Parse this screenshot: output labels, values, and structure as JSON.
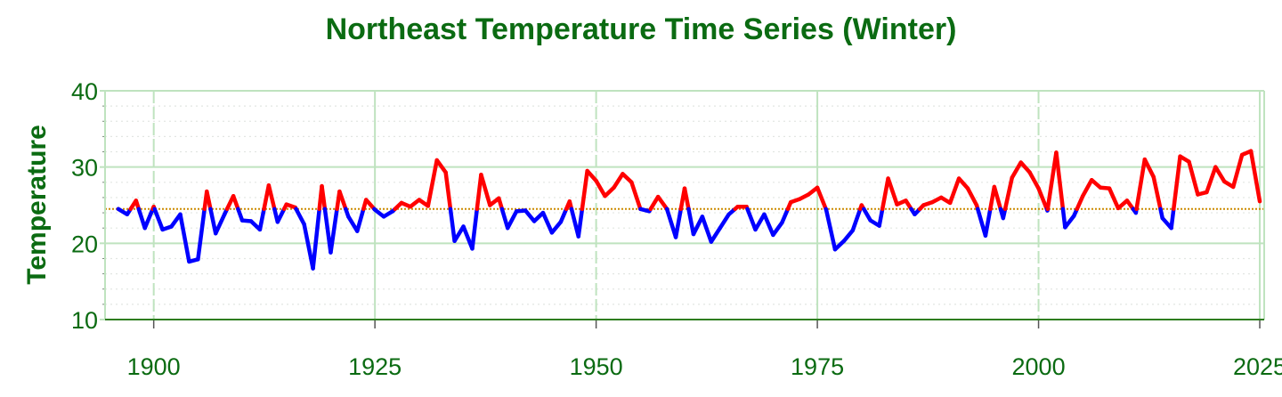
{
  "chart_data": {
    "type": "line",
    "title": "Northeast Temperature Time Series (Winter)",
    "xlabel": "",
    "ylabel": "Temperature",
    "xlim": [
      1894.5,
      2025.5
    ],
    "ylim": [
      10,
      40
    ],
    "x_ticks": [
      "1900",
      "1925",
      "1950",
      "1975",
      "2000",
      "2025"
    ],
    "y_ticks": [
      "10",
      "20",
      "30",
      "40"
    ],
    "grid": true,
    "baseline": 24.5,
    "colors": {
      "above_baseline": "#ff0000",
      "below_baseline": "#0000ff",
      "baseline_line": "#cc8a00",
      "grid": "#bfe3bf",
      "text": "#0b6b12"
    },
    "x": [
      1896,
      1897,
      1898,
      1899,
      1900,
      1901,
      1902,
      1903,
      1904,
      1905,
      1906,
      1907,
      1908,
      1909,
      1910,
      1911,
      1912,
      1913,
      1914,
      1915,
      1916,
      1917,
      1918,
      1919,
      1920,
      1921,
      1922,
      1923,
      1924,
      1925,
      1926,
      1927,
      1928,
      1929,
      1930,
      1931,
      1932,
      1933,
      1934,
      1935,
      1936,
      1937,
      1938,
      1939,
      1940,
      1941,
      1942,
      1943,
      1944,
      1945,
      1946,
      1947,
      1948,
      1949,
      1950,
      1951,
      1952,
      1953,
      1954,
      1955,
      1956,
      1957,
      1958,
      1959,
      1960,
      1961,
      1962,
      1963,
      1964,
      1965,
      1966,
      1967,
      1968,
      1969,
      1970,
      1971,
      1972,
      1973,
      1974,
      1975,
      1976,
      1977,
      1978,
      1979,
      1980,
      1981,
      1982,
      1983,
      1984,
      1985,
      1986,
      1987,
      1988,
      1989,
      1990,
      1991,
      1992,
      1993,
      1994,
      1995,
      1996,
      1997,
      1998,
      1999,
      2000,
      2001,
      2002,
      2003,
      2004,
      2005,
      2006,
      2007,
      2008,
      2009,
      2010,
      2011,
      2012,
      2013,
      2014,
      2015,
      2016,
      2017,
      2018,
      2019,
      2020,
      2021,
      2022,
      2023,
      2024,
      2025
    ],
    "y": [
      24.5,
      23.8,
      25.6,
      22,
      24.8,
      21.8,
      22.2,
      23.8,
      17.6,
      17.9,
      26.8,
      21.3,
      23.8,
      26.2,
      23,
      22.9,
      21.8,
      27.6,
      22.8,
      25.1,
      24.7,
      22.5,
      16.7,
      27.5,
      18.8,
      26.8,
      23.5,
      21.6,
      25.7,
      24.4,
      23.5,
      24.2,
      25.3,
      24.8,
      25.7,
      24.9,
      30.9,
      29.3,
      20.3,
      22.2,
      19.3,
      29,
      25,
      25.9,
      22,
      24.2,
      24.3,
      22.9,
      24,
      21.4,
      22.8,
      25.5,
      20.9,
      29.5,
      28.2,
      26.2,
      27.3,
      29.1,
      28,
      24.5,
      24.2,
      26.1,
      24.5,
      20.8,
      27.2,
      21.2,
      23.5,
      20.2,
      22,
      23.8,
      24.8,
      24.8,
      21.8,
      23.8,
      21.1,
      22.7,
      25.4,
      25.8,
      26.4,
      27.3,
      24.4,
      19.2,
      20.3,
      21.7,
      25,
      23,
      22.3,
      28.5,
      25.1,
      25.6,
      23.8,
      25,
      25.4,
      26,
      25.3,
      28.5,
      27.2,
      25,
      21,
      27.4,
      23.3,
      28.6,
      30.6,
      29.3,
      27.2,
      24.3,
      31.9,
      22.1,
      23.6,
      26.2,
      28.3,
      27.3,
      27.2,
      24.6,
      25.6,
      24,
      31,
      28.7,
      23.3,
      22,
      31.4,
      30.7,
      26.4,
      26.7,
      30,
      28.1,
      27.4,
      31.6,
      32.1,
      25.5
    ]
  }
}
